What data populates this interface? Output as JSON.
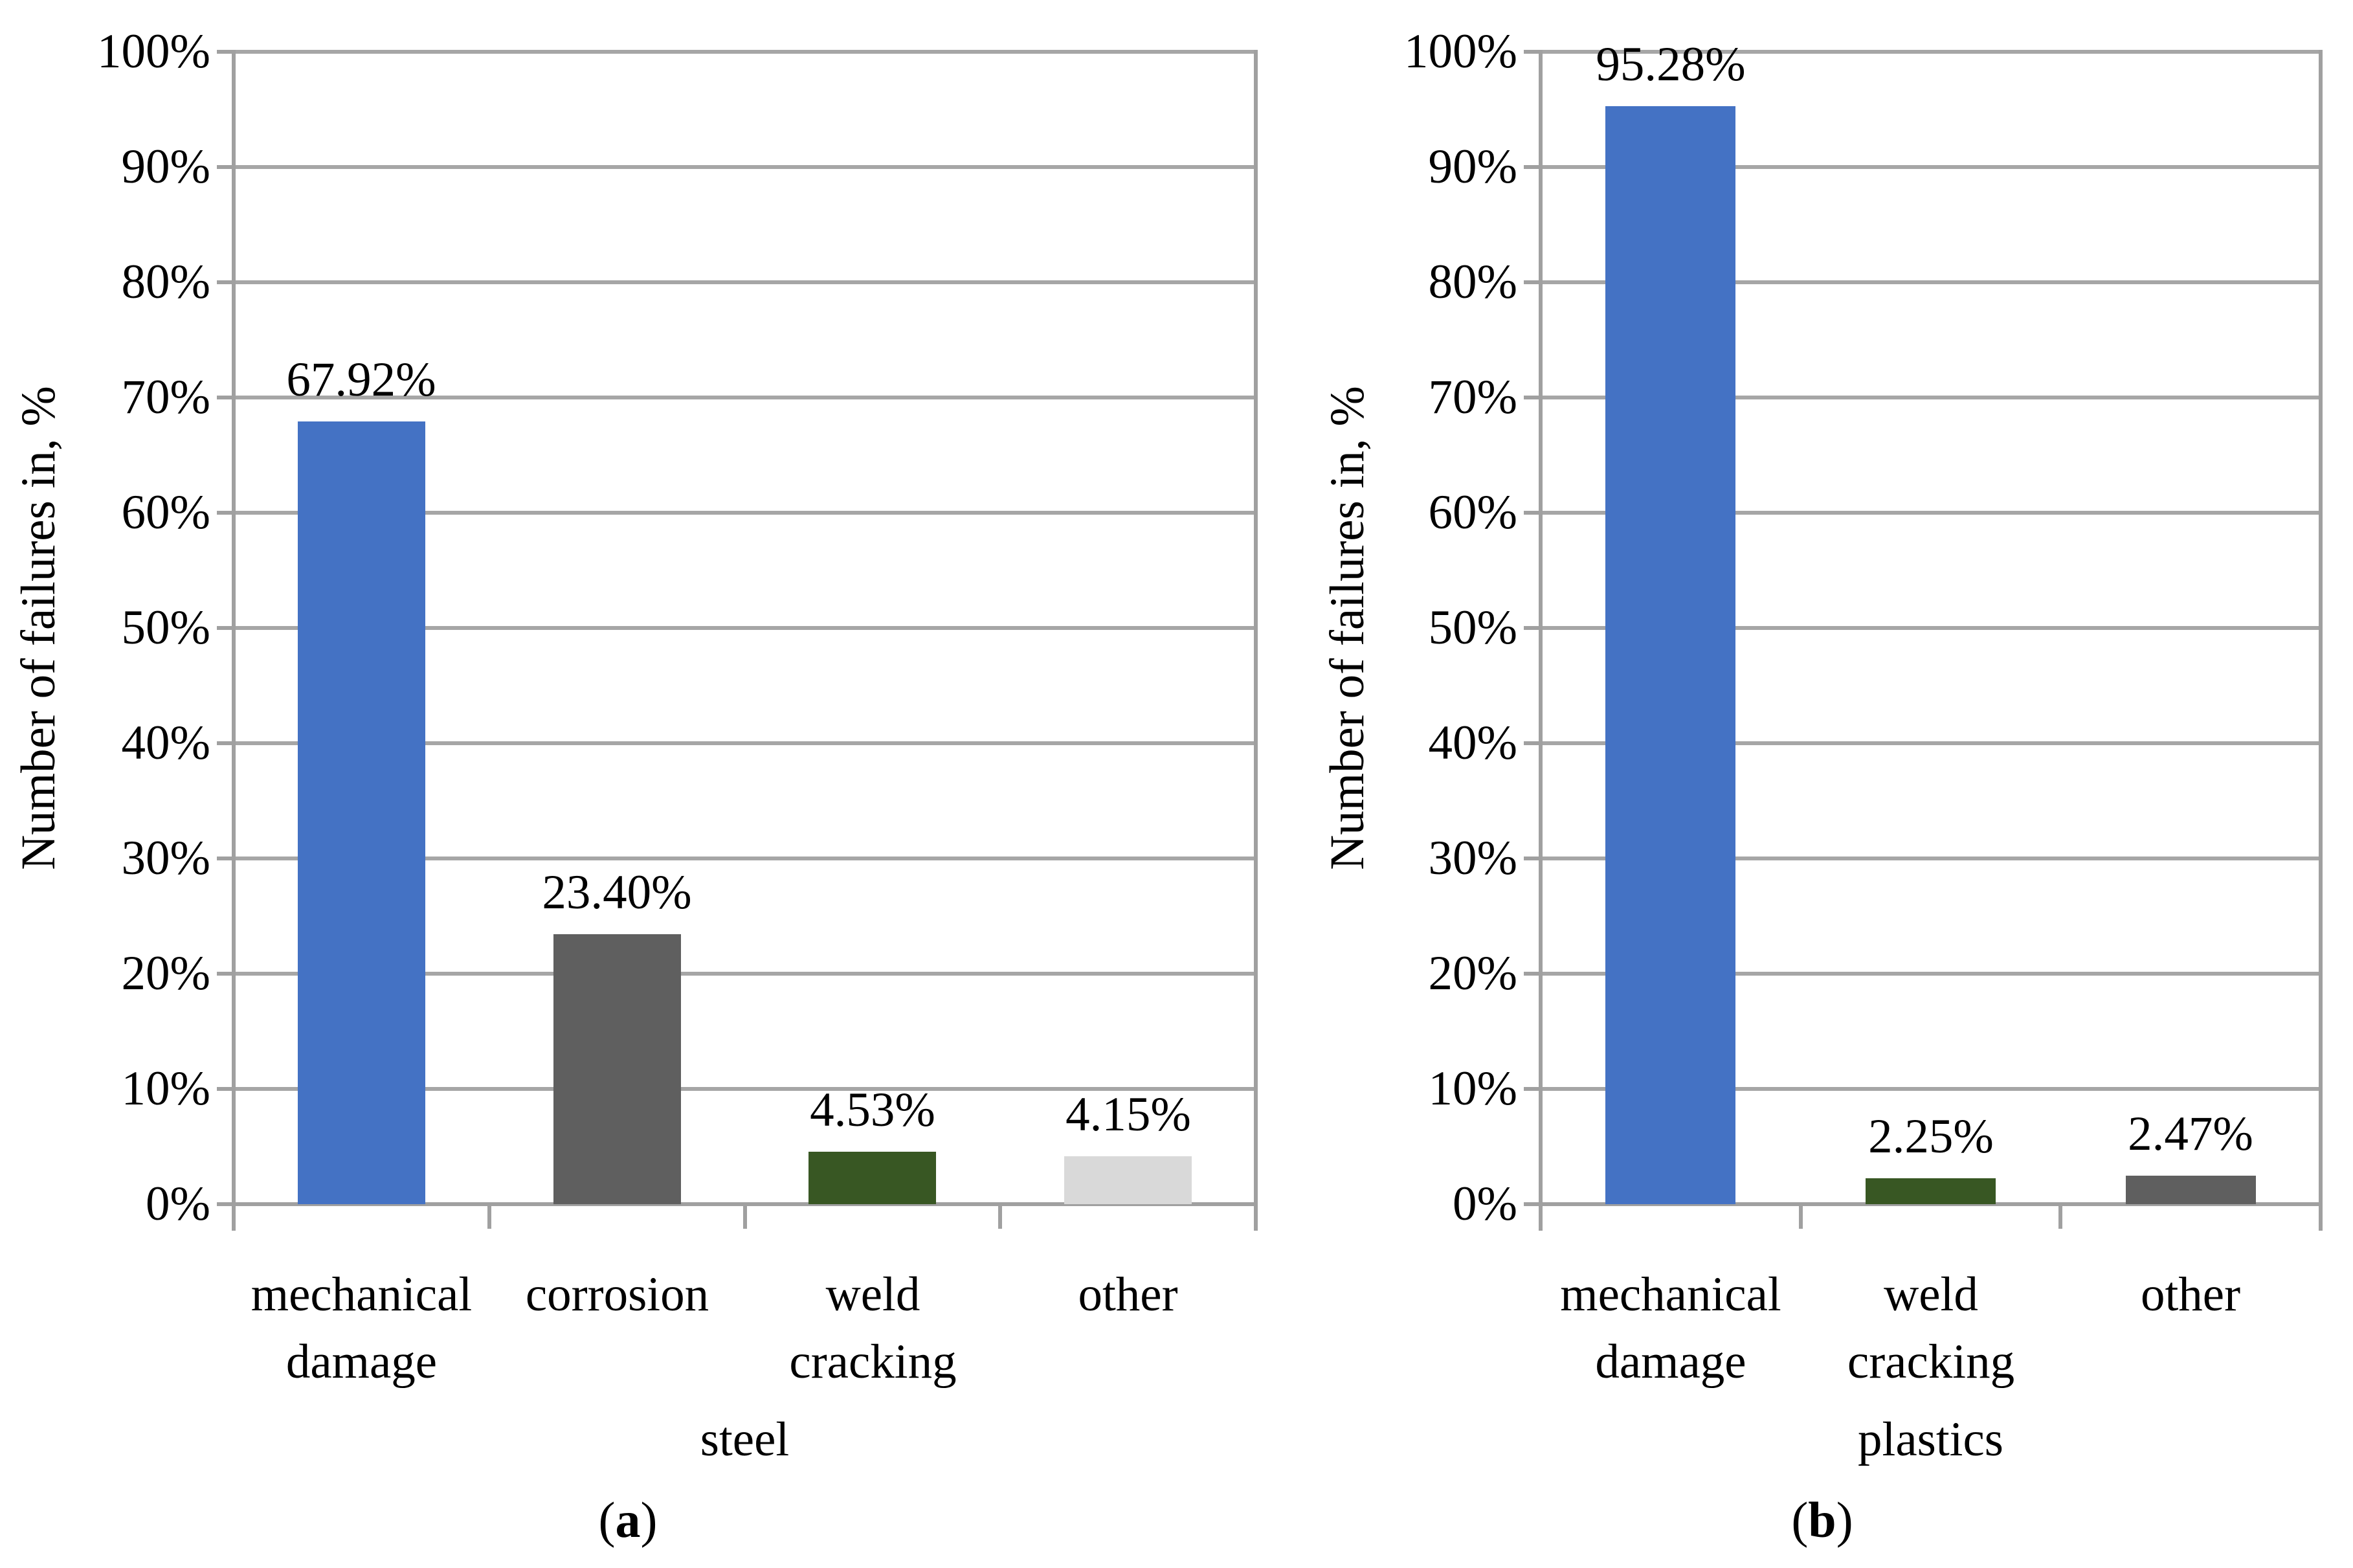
{
  "colors": {
    "gridline": "#A6A6A6",
    "axis": "#A0A0A0",
    "blue": "#4472C4",
    "dark_gray": "#5F5F5F",
    "dark_green": "#385723",
    "light_gray": "#D9D9D9",
    "text": "#000000",
    "background": "#FFFFFF"
  },
  "chart_data": [
    {
      "type": "bar",
      "title": "",
      "xlabel": "steel",
      "ylabel": "Number of failures in, %",
      "categories": [
        "mechanical damage",
        "corrosion",
        "weld cracking",
        "other"
      ],
      "values": [
        67.92,
        23.4,
        4.53,
        4.15
      ],
      "data_labels": [
        "67.92%",
        "23.40%",
        "4.53%",
        "4.15%"
      ],
      "bar_colors": [
        "#4472C4",
        "#5F5F5F",
        "#385723",
        "#D9D9D9"
      ],
      "ylim": [
        0,
        100
      ],
      "ytick_step": 10,
      "ytick_labels": [
        "0%",
        "10%",
        "20%",
        "30%",
        "40%",
        "50%",
        "60%",
        "70%",
        "80%",
        "90%",
        "100%"
      ],
      "grid": true,
      "legend": null,
      "caption": {
        "open": "(",
        "letter": "a",
        "close": ")"
      }
    },
    {
      "type": "bar",
      "title": "",
      "xlabel": "plastics",
      "ylabel": "Number of failures in, %",
      "categories": [
        "mechanical damage",
        "weld cracking",
        "other"
      ],
      "values": [
        95.28,
        2.25,
        2.47
      ],
      "data_labels": [
        "95.28%",
        "2.25%",
        "2.47%"
      ],
      "bar_colors": [
        "#4472C4",
        "#385723",
        "#5F5F5F"
      ],
      "ylim": [
        0,
        100
      ],
      "ytick_step": 10,
      "ytick_labels": [
        "0%",
        "10%",
        "20%",
        "30%",
        "40%",
        "50%",
        "60%",
        "70%",
        "80%",
        "90%",
        "100%"
      ],
      "grid": true,
      "legend": null,
      "caption": {
        "open": "(",
        "letter": "b",
        "close": ")"
      }
    }
  ]
}
